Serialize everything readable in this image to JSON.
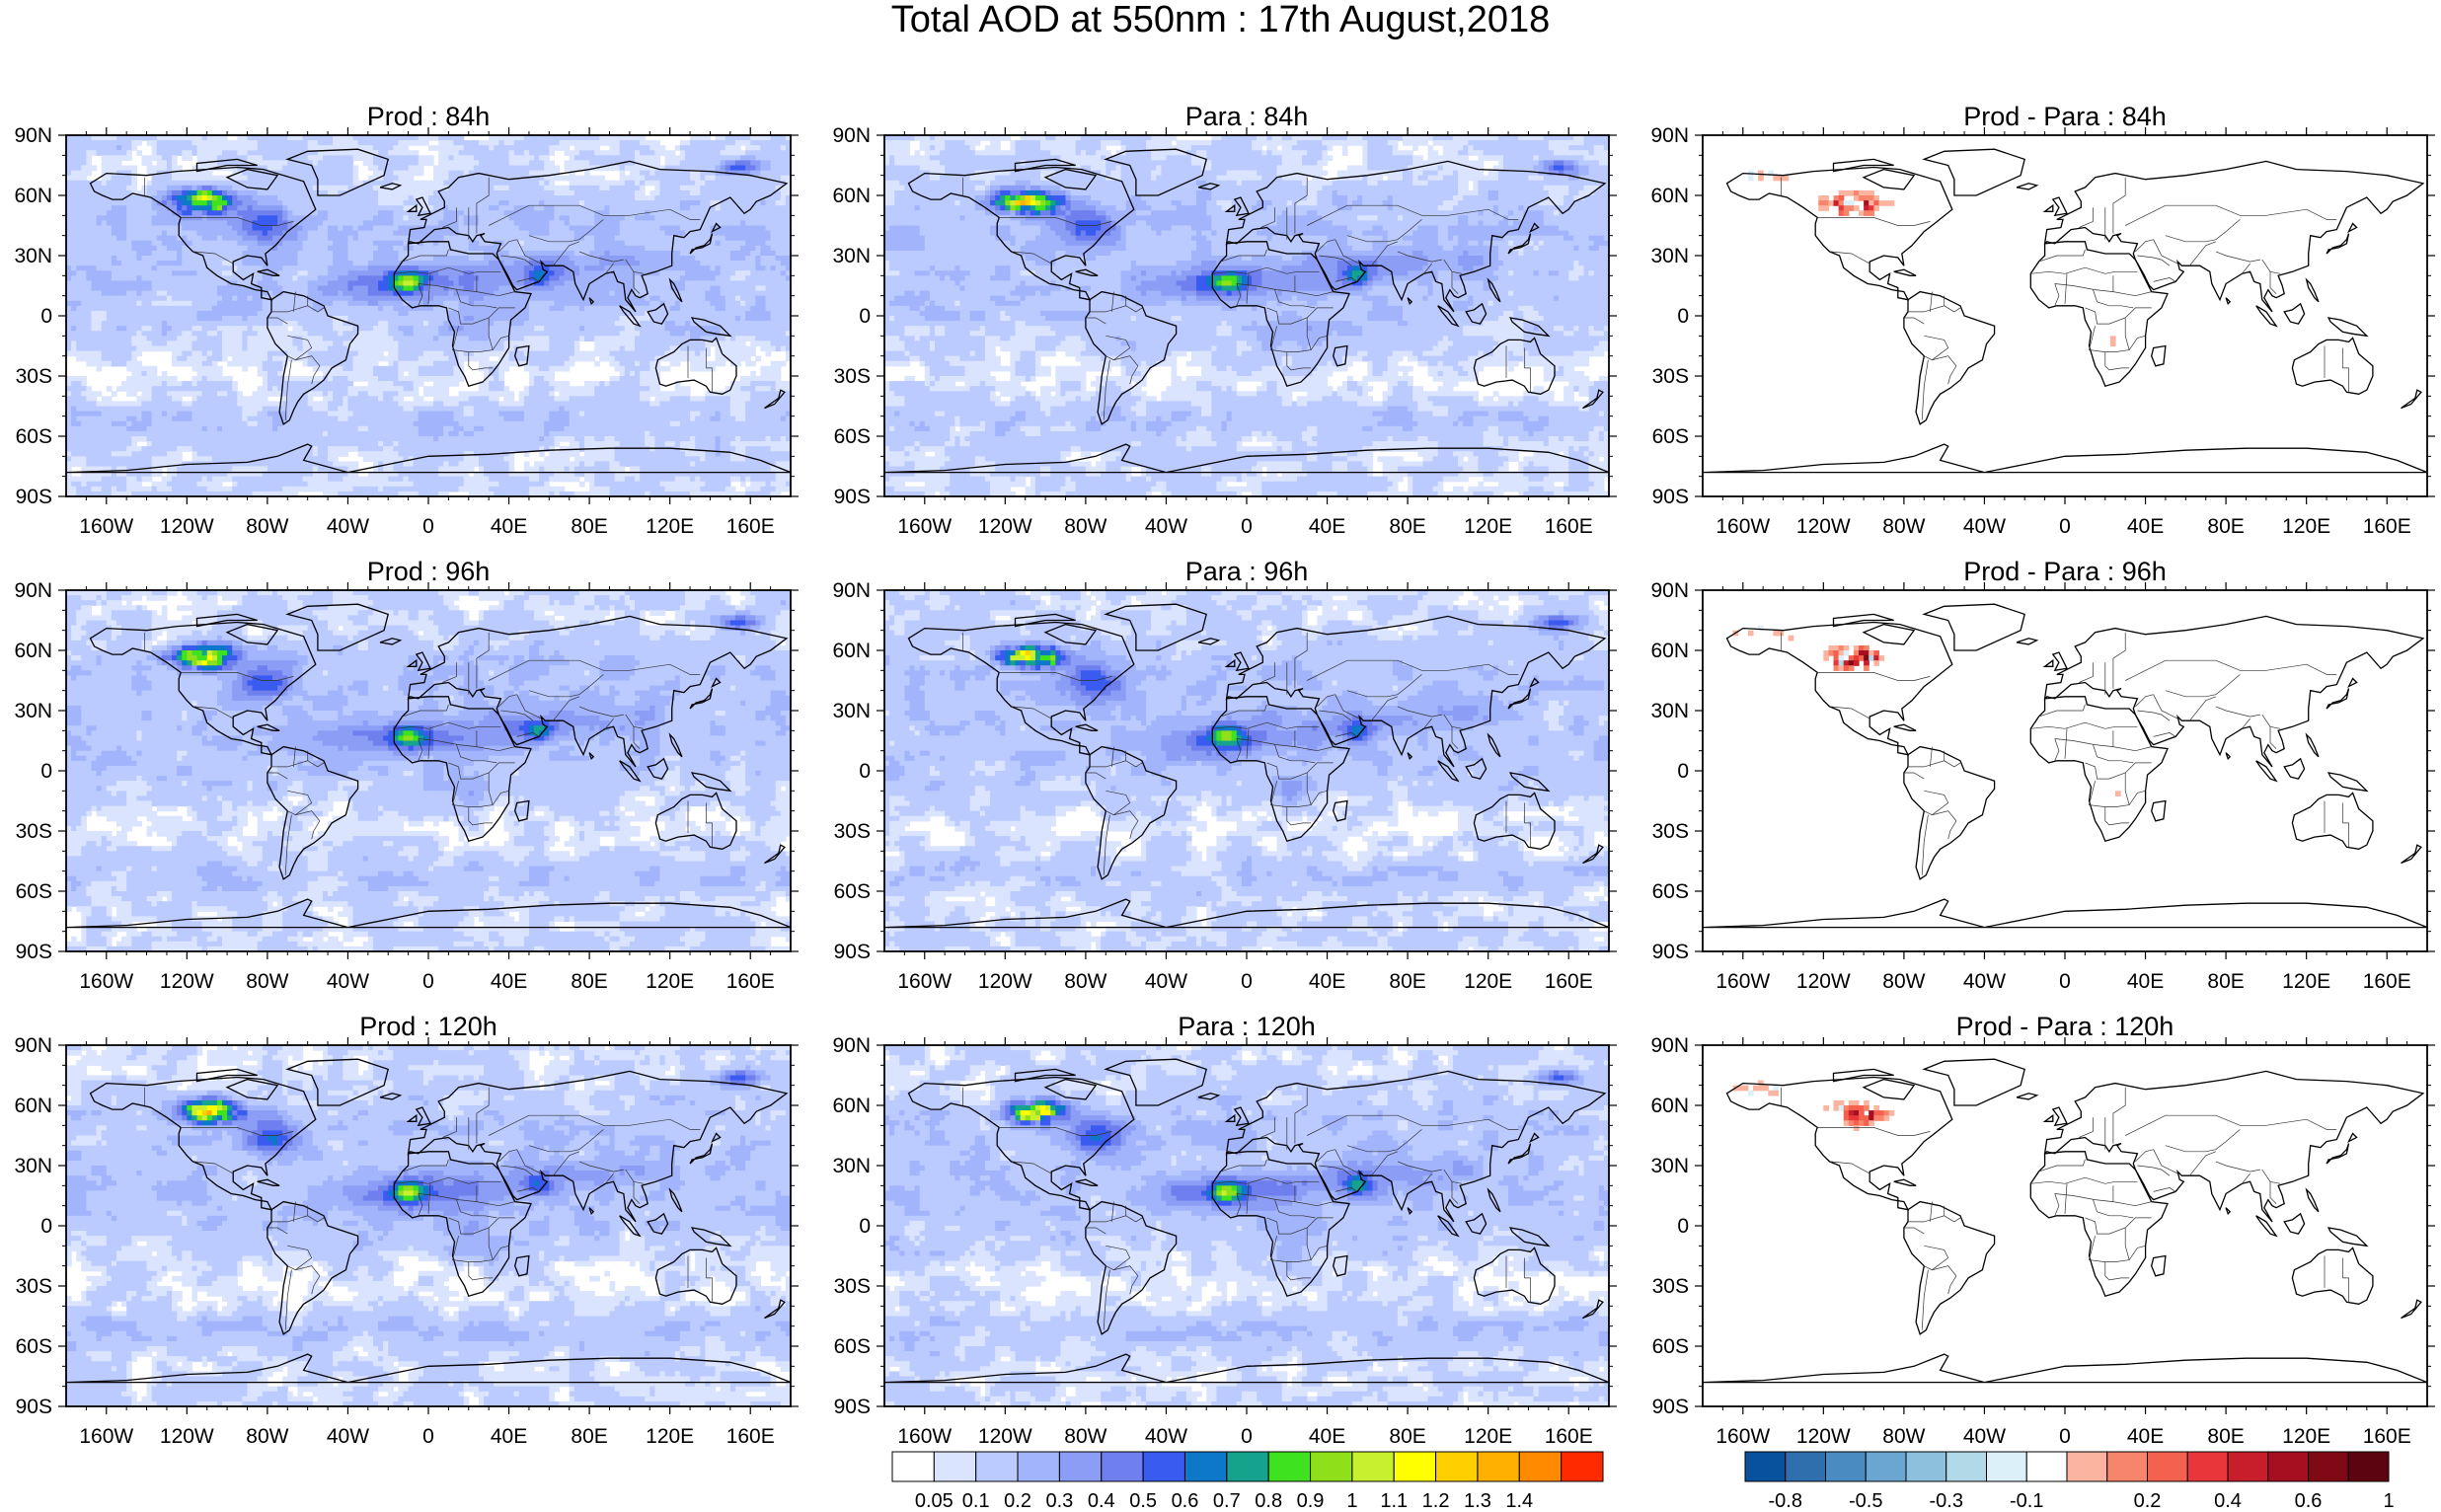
{
  "title": "Total AOD at 550nm : 17th August,2018",
  "panels": [
    {
      "title": "Prod : 84h",
      "kind": "aod",
      "lead": 84
    },
    {
      "title": "Para : 84h",
      "kind": "aod",
      "lead": 84
    },
    {
      "title": "Prod - Para : 84h",
      "kind": "diff",
      "lead": 84
    },
    {
      "title": "Prod : 96h",
      "kind": "aod",
      "lead": 96
    },
    {
      "title": "Para : 96h",
      "kind": "aod",
      "lead": 96
    },
    {
      "title": "Prod - Para : 96h",
      "kind": "diff",
      "lead": 96
    },
    {
      "title": "Prod : 120h",
      "kind": "aod",
      "lead": 120
    },
    {
      "title": "Para : 120h",
      "kind": "aod",
      "lead": 120
    },
    {
      "title": "Prod - Para : 120h",
      "kind": "diff",
      "lead": 120
    }
  ],
  "lat_ticks": [
    "90N",
    "60N",
    "30N",
    "0",
    "30S",
    "60S",
    "90S"
  ],
  "lon_ticks": [
    "160W",
    "120W",
    "80W",
    "40W",
    "0",
    "40E",
    "80E",
    "120E",
    "160E"
  ],
  "lon_tick_values": [
    -160,
    -120,
    -80,
    -40,
    0,
    40,
    80,
    120,
    160
  ],
  "lat_tick_values": [
    90,
    60,
    30,
    0,
    -30,
    -60,
    -90
  ],
  "aod_colorbar": {
    "labels": [
      "0.05",
      "0.1",
      "0.2",
      "0.3",
      "0.4",
      "0.5",
      "0.6",
      "0.7",
      "0.8",
      "0.9",
      "1",
      "1.1",
      "1.2",
      "1.3",
      "1.4"
    ],
    "colors": [
      "#ffffff",
      "#dbe4ff",
      "#bccbff",
      "#a2b4fb",
      "#8b9df5",
      "#6f7fee",
      "#3a5bf0",
      "#0d78c8",
      "#16a38e",
      "#3fe21f",
      "#8fe01a",
      "#c8f02e",
      "#ffff00",
      "#ffd000",
      "#ffb000",
      "#ff8a00",
      "#ff2a00"
    ]
  },
  "diff_colorbar": {
    "labels": [
      "-0.8",
      "-0.5",
      "-0.3",
      "-0.1",
      "0.2",
      "0.4",
      "0.6",
      "1"
    ],
    "colors": [
      "#08519c",
      "#2f6fae",
      "#4a8cc1",
      "#6aa6cf",
      "#8cc0dc",
      "#b2d9e8",
      "#dcf0fa",
      "#ffffff",
      "#fbb4a0",
      "#f7856c",
      "#f4624f",
      "#e8363a",
      "#c81d2a",
      "#a50f20",
      "#7f0a16",
      "#5c0510"
    ]
  }
}
